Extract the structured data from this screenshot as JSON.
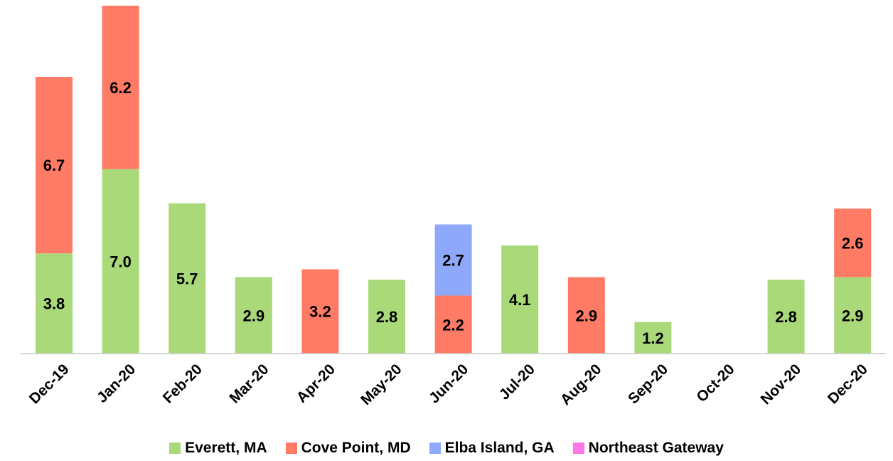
{
  "chart_data": {
    "type": "bar",
    "stacked": true,
    "categories": [
      "Dec-19",
      "Jan-20",
      "Feb-20",
      "Mar-20",
      "Apr-20",
      "May-20",
      "Jun-20",
      "Jul-20",
      "Aug-20",
      "Sep-20",
      "Oct-20",
      "Nov-20",
      "Dec-20"
    ],
    "series": [
      {
        "name": "Everett, MA",
        "color": "#A9D979",
        "values": [
          3.8,
          7.0,
          5.7,
          2.9,
          0,
          2.8,
          0,
          4.1,
          0,
          1.2,
          0,
          2.8,
          2.9
        ]
      },
      {
        "name": "Cove Point, MD",
        "color": "#FF7B66",
        "values": [
          6.7,
          6.2,
          0,
          0,
          3.2,
          0,
          2.2,
          0,
          2.9,
          0,
          0,
          0,
          2.6
        ]
      },
      {
        "name": "Elba Island, GA",
        "color": "#8FA9FA",
        "values": [
          0,
          0,
          0,
          0,
          0,
          0,
          2.7,
          0,
          0,
          0,
          0,
          0,
          0
        ]
      },
      {
        "name": "Northeast Gateway",
        "color": "#FF77E6",
        "values": [
          0,
          0,
          0,
          0,
          0,
          0,
          0,
          0,
          0,
          0,
          0,
          0,
          0
        ]
      }
    ],
    "data_labels": true,
    "legend_position": "bottom",
    "grid": false,
    "ylim": [
      0,
      13.2
    ]
  }
}
